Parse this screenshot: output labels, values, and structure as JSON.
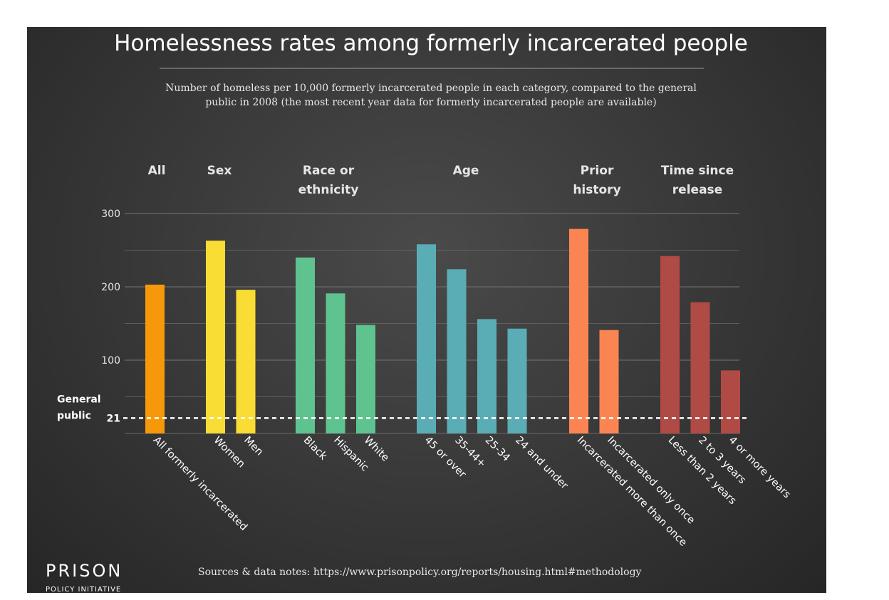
{
  "chart_data": {
    "type": "bar",
    "title": "Homelessness rates among formerly incarcerated people",
    "subtitle_lines": [
      "Number of homeless per 10,000 formerly incarcerated people in each category, compared to the general",
      "public in 2008 (the most recent year data for formerly incarcerated people are available)"
    ],
    "ylim": [
      0,
      300
    ],
    "y_ticks": [
      100,
      200,
      300
    ],
    "grid": true,
    "reference_line": {
      "value": 21,
      "label_lines": [
        "General",
        "public"
      ],
      "tick_label": "21"
    },
    "groups": [
      {
        "name_lines": [
          "All"
        ],
        "color": "#f7980a",
        "categories": [
          "All formerly incarcerated"
        ],
        "values": [
          203
        ]
      },
      {
        "name_lines": [
          "Sex"
        ],
        "color": "#f9dc34",
        "categories": [
          "Women",
          "Men"
        ],
        "values": [
          263,
          196
        ]
      },
      {
        "name_lines": [
          "Race or",
          "ethnicity"
        ],
        "color": "#5fc38f",
        "categories": [
          "Black",
          "Hispanic",
          "White"
        ],
        "values": [
          240,
          191,
          148
        ]
      },
      {
        "name_lines": [
          "Age"
        ],
        "color": "#5aadb5",
        "categories": [
          "45 or over",
          "35-44+",
          "25-34",
          "24 and under"
        ],
        "values": [
          258,
          224,
          156,
          143
        ]
      },
      {
        "name_lines": [
          "Prior",
          "history"
        ],
        "color": "#fb8552",
        "categories": [
          "Incarcerated more than once",
          "Incarcerated only once"
        ],
        "values": [
          279,
          141
        ]
      },
      {
        "name_lines": [
          "Time since",
          "release"
        ],
        "color": "#b04a45",
        "categories": [
          "Less than 2 years",
          "2 to 3 years",
          "4 or more years"
        ],
        "values": [
          242,
          179,
          86
        ]
      }
    ]
  },
  "source_text": "Sources & data notes: https://www.prisonpolicy.org/reports/housing.html#methodology",
  "logo": {
    "main": "PRISON",
    "sub": "POLICY INITIATIVE"
  }
}
